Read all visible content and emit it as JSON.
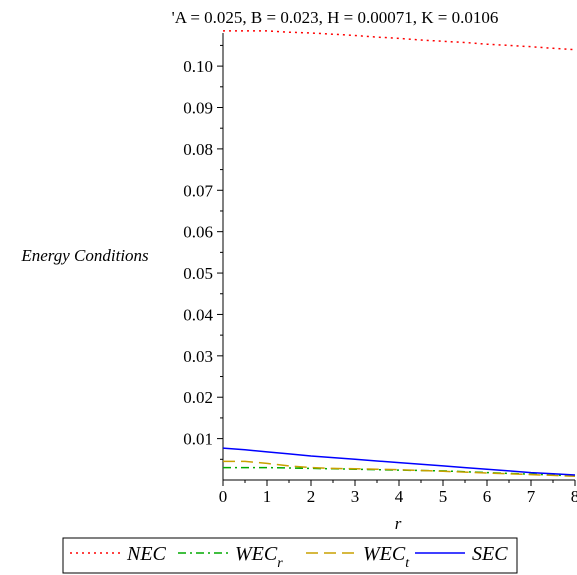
{
  "chart_data": {
    "type": "line",
    "title": "'A = 0.025, B = 0.023, H = 0.00071, K = 0.0106",
    "xlabel": "r",
    "ylabel": "Energy Conditions",
    "xlim": [
      0,
      8
    ],
    "ylim": [
      0,
      0.108
    ],
    "x_ticks": [
      "0",
      "1",
      "2",
      "3",
      "4",
      "5",
      "6",
      "7",
      "8"
    ],
    "y_ticks": [
      "0.01",
      "0.02",
      "0.03",
      "0.04",
      "0.05",
      "0.06",
      "0.07",
      "0.08",
      "0.09",
      "0.10"
    ],
    "grid": false,
    "legend_position": "bottom",
    "series": [
      {
        "name": "NEC",
        "label_main": "NEC",
        "label_sub": "",
        "color": "#ff0000",
        "dash": "dotted",
        "x": [
          0,
          0.5,
          1,
          1.5,
          2,
          2.5,
          3,
          3.5,
          4,
          4.5,
          5,
          5.5,
          6,
          6.5,
          7,
          7.5,
          8
        ],
        "y": [
          0.1085,
          0.1085,
          0.1085,
          0.1082,
          0.108,
          0.1077,
          0.1074,
          0.107,
          0.1067,
          0.1063,
          0.106,
          0.1057,
          0.1053,
          0.105,
          0.1047,
          0.1043,
          0.104
        ]
      },
      {
        "name": "WEC_r",
        "label_main": "WEC",
        "label_sub": "r",
        "color": "#00aa00",
        "dash": "dashdot",
        "x": [
          0,
          0.5,
          1,
          1.5,
          2,
          2.5,
          3,
          3.5,
          4,
          4.5,
          5,
          5.5,
          6,
          6.5,
          7,
          7.5,
          8
        ],
        "y": [
          0.003,
          0.003,
          0.003,
          0.0029,
          0.0028,
          0.0027,
          0.0026,
          0.0025,
          0.0024,
          0.0023,
          0.0022,
          0.002,
          0.0018,
          0.0016,
          0.0014,
          0.0012,
          0.001
        ]
      },
      {
        "name": "WEC_t",
        "label_main": "WEC",
        "label_sub": "t",
        "color": "#c8a000",
        "dash": "dashed",
        "x": [
          0,
          0.5,
          1,
          1.5,
          2,
          2.5,
          3,
          3.5,
          4,
          4.5,
          5,
          5.5,
          6,
          6.5,
          7,
          7.5,
          8
        ],
        "y": [
          0.0045,
          0.0045,
          0.004,
          0.0034,
          0.003,
          0.0028,
          0.0027,
          0.0026,
          0.0025,
          0.0023,
          0.0021,
          0.0019,
          0.0017,
          0.0015,
          0.0013,
          0.0011,
          0.0009
        ]
      },
      {
        "name": "SEC",
        "label_main": "SEC",
        "label_sub": "",
        "color": "#0000ff",
        "dash": "solid",
        "x": [
          0,
          0.5,
          1,
          1.5,
          2,
          2.5,
          3,
          3.5,
          4,
          4.5,
          5,
          5.5,
          6,
          6.5,
          7,
          7.5,
          8
        ],
        "y": [
          0.0077,
          0.0073,
          0.0068,
          0.0063,
          0.0058,
          0.0054,
          0.005,
          0.0046,
          0.0042,
          0.0038,
          0.0034,
          0.003,
          0.0026,
          0.0022,
          0.0018,
          0.0015,
          0.0012
        ]
      }
    ]
  }
}
